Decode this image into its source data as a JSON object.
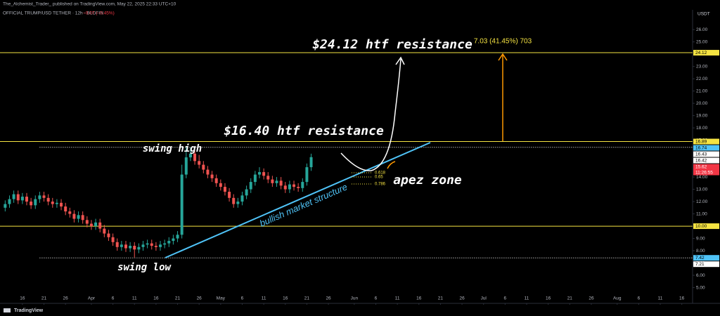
{
  "header": {
    "publisher": "The_Alchemist_Trader_ published on TradingView.com, May 22, 2025 22:33 UTC+10",
    "symbol": "OFFICIAL TRUMP/USD TETHER · 12h · BLOFIN",
    "change": "−0.07 (−0.45%)",
    "brand": "TradingView"
  },
  "chart_data": {
    "type": "candlestick",
    "currency": "USDT",
    "x": [
      -20,
      -19,
      -18,
      -17,
      -16,
      -15,
      -14,
      -13,
      -12,
      -11,
      -10,
      -9,
      -8,
      -7,
      -6,
      -5,
      -4,
      -3,
      -2,
      -1,
      0,
      1,
      2,
      3,
      4,
      5,
      6,
      7,
      8,
      9,
      10,
      11,
      12,
      13,
      14,
      15,
      16,
      17,
      18,
      19,
      20,
      21,
      22,
      23,
      24,
      25,
      26,
      27,
      28,
      29,
      30,
      31,
      32,
      33,
      34,
      35,
      36,
      37,
      38,
      39,
      40,
      41,
      42,
      43,
      44,
      45,
      46,
      47,
      48,
      49,
      50,
      51
    ],
    "open": [
      11.5,
      11.8,
      12.2,
      12.6,
      12.1,
      12.4,
      12.0,
      11.7,
      12.2,
      12.5,
      12.3,
      12.0,
      11.8,
      11.9,
      11.6,
      11.2,
      11.0,
      10.6,
      10.9,
      10.5,
      10.2,
      10.0,
      10.3,
      9.8,
      9.4,
      9.1,
      8.7,
      8.3,
      8.5,
      8.2,
      8.4,
      8.1,
      8.3,
      8.5,
      8.6,
      8.4,
      8.3,
      8.5,
      8.6,
      8.8,
      9.0,
      9.3,
      14.2,
      15.6,
      15.9,
      15.3,
      15.0,
      14.6,
      14.2,
      13.9,
      13.5,
      13.2,
      12.8,
      12.3,
      11.8,
      12.0,
      12.5,
      13.0,
      13.6,
      14.2,
      14.4,
      14.1,
      13.8,
      13.5,
      13.7,
      13.3,
      13.0,
      13.4,
      13.2,
      13.1,
      13.6,
      14.8
    ],
    "high": [
      12.1,
      12.5,
      12.9,
      12.9,
      12.7,
      12.7,
      12.3,
      12.5,
      12.8,
      12.8,
      12.6,
      12.3,
      12.2,
      12.2,
      11.9,
      11.5,
      11.3,
      11.2,
      11.2,
      10.8,
      10.5,
      10.6,
      10.6,
      10.1,
      9.7,
      9.4,
      9.0,
      8.8,
      8.8,
      8.7,
      8.7,
      8.6,
      8.8,
      8.9,
      8.9,
      8.7,
      8.8,
      8.9,
      9.1,
      9.3,
      9.6,
      15.0,
      16.5,
      16.4,
      16.2,
      15.8,
      15.3,
      14.9,
      14.5,
      14.2,
      13.8,
      13.5,
      13.1,
      12.6,
      12.3,
      12.8,
      13.3,
      13.9,
      14.5,
      14.8,
      14.7,
      14.4,
      14.1,
      14.0,
      14.0,
      13.6,
      13.7,
      13.7,
      13.5,
      13.9,
      15.1,
      15.9
    ],
    "low": [
      11.2,
      11.5,
      11.9,
      11.8,
      11.8,
      11.7,
      11.4,
      11.4,
      11.9,
      12.0,
      11.7,
      11.5,
      11.5,
      11.3,
      10.9,
      10.7,
      10.3,
      10.3,
      10.2,
      9.9,
      9.7,
      9.7,
      9.5,
      9.1,
      8.8,
      8.4,
      8.0,
      8.0,
      7.9,
      7.9,
      7.45,
      7.8,
      8.0,
      8.2,
      8.1,
      8.0,
      8.0,
      8.2,
      8.3,
      8.5,
      8.7,
      9.0,
      13.9,
      15.3,
      15.0,
      14.7,
      14.3,
      13.9,
      13.6,
      13.2,
      12.9,
      12.5,
      12.0,
      11.5,
      11.5,
      11.7,
      12.2,
      12.7,
      13.3,
      13.9,
      13.8,
      13.5,
      13.2,
      13.2,
      13.0,
      12.7,
      12.7,
      12.9,
      12.8,
      12.8,
      13.3,
      14.5
    ],
    "close": [
      11.8,
      12.2,
      12.6,
      12.1,
      12.4,
      12.0,
      11.7,
      12.2,
      12.5,
      12.3,
      12.0,
      11.8,
      11.9,
      11.6,
      11.2,
      11.0,
      10.6,
      10.9,
      10.5,
      10.2,
      10.0,
      10.3,
      9.8,
      9.4,
      9.1,
      8.7,
      8.3,
      8.5,
      8.2,
      8.4,
      8.1,
      8.3,
      8.5,
      8.6,
      8.4,
      8.3,
      8.5,
      8.6,
      8.8,
      9.0,
      9.3,
      14.2,
      15.6,
      15.9,
      15.3,
      15.0,
      14.6,
      14.2,
      13.9,
      13.5,
      13.2,
      12.8,
      12.3,
      11.8,
      12.0,
      12.5,
      13.0,
      13.6,
      14.2,
      14.4,
      14.1,
      13.8,
      13.5,
      13.7,
      13.3,
      13.0,
      13.4,
      13.2,
      13.1,
      13.6,
      14.8,
      15.62
    ],
    "up_color": "#26a69a",
    "down_color": "#ef5350",
    "xlim": [
      -21.2,
      139.5
    ],
    "xticks": [
      {
        "value": -16,
        "label": "16"
      },
      {
        "value": -11,
        "label": "21"
      },
      {
        "value": -6,
        "label": "26"
      },
      {
        "value": 0,
        "label": "Apr"
      },
      {
        "value": 5,
        "label": "6"
      },
      {
        "value": 10,
        "label": "11"
      },
      {
        "value": 15,
        "label": "16"
      },
      {
        "value": 20,
        "label": "21"
      },
      {
        "value": 25,
        "label": "26"
      },
      {
        "value": 30,
        "label": "May"
      },
      {
        "value": 35,
        "label": "6"
      },
      {
        "value": 40,
        "label": "11"
      },
      {
        "value": 45,
        "label": "16"
      },
      {
        "value": 50,
        "label": "21"
      },
      {
        "value": 55,
        "label": "26"
      },
      {
        "value": 61,
        "label": "Jun"
      },
      {
        "value": 66,
        "label": "6"
      },
      {
        "value": 71,
        "label": "11"
      },
      {
        "value": 76,
        "label": "16"
      },
      {
        "value": 81,
        "label": "21"
      },
      {
        "value": 86,
        "label": "26"
      },
      {
        "value": 91,
        "label": "Jul"
      },
      {
        "value": 96,
        "label": "6"
      },
      {
        "value": 101,
        "label": "11"
      },
      {
        "value": 106,
        "label": "16"
      },
      {
        "value": 111,
        "label": "21"
      },
      {
        "value": 116,
        "label": "26"
      },
      {
        "value": 122,
        "label": "Aug"
      },
      {
        "value": 127,
        "label": "6"
      },
      {
        "value": 132,
        "label": "11"
      },
      {
        "value": 137,
        "label": "16"
      }
    ],
    "ylim": [
      3.83,
      27.61
    ],
    "yticks": [
      {
        "value": 5,
        "label": "5.00"
      },
      {
        "value": 6,
        "label": "6.00"
      },
      {
        "value": 7,
        "label": "7.00"
      },
      {
        "value": 8,
        "label": "8.00"
      },
      {
        "value": 9,
        "label": "9.00"
      },
      {
        "value": 11,
        "label": "11.00"
      },
      {
        "value": 12,
        "label": "12.00"
      },
      {
        "value": 13,
        "label": "13.00"
      },
      {
        "value": 14,
        "label": "14.00"
      },
      {
        "value": 17,
        "label": "17.00"
      },
      {
        "value": 18,
        "label": "18.00"
      },
      {
        "value": 19,
        "label": "19.00"
      },
      {
        "value": 20,
        "label": "20.00"
      },
      {
        "value": 21,
        "label": "21.00"
      },
      {
        "value": 22,
        "label": "22.00"
      },
      {
        "value": 23,
        "label": "23.00"
      },
      {
        "value": 25,
        "label": "25.00"
      },
      {
        "value": 26,
        "label": "26.00"
      }
    ],
    "levels": [
      {
        "value": 24.12,
        "label": "24.12",
        "color": "#f5e342",
        "line": "solid"
      },
      {
        "value": 16.89,
        "label": "16.89",
        "color": "#f5e342",
        "line": "solid"
      },
      {
        "value": 16.74,
        "label": "16.74",
        "color": "#4fc3f7",
        "line": "none"
      },
      {
        "value": 16.43,
        "label": "16.43",
        "color": "#ffffff",
        "line": "none"
      },
      {
        "value": 16.42,
        "label": "16.42",
        "color": "#ffffff",
        "line": "dotted"
      },
      {
        "value": 15.62,
        "label": "15.62",
        "color": "#f23645",
        "line": "none",
        "sublabel": "11:26:55"
      },
      {
        "value": 10.0,
        "label": "10.00",
        "color": "#f5e342",
        "line": "solid"
      },
      {
        "value": 7.42,
        "label": "7.42",
        "color": "#4fc3f7",
        "line": "dotted"
      },
      {
        "value": 7.21,
        "label": "7.21",
        "color": "#ffffff",
        "line": "none"
      }
    ],
    "annotations": {
      "resistance_high": "$24.12 htf resistance",
      "measure": "7.03 (41.45%) 703",
      "resistance_low": "$16.40 htf resistance",
      "swing_high": "swing high",
      "swing_low": "swing low",
      "zone": "apez zone",
      "trend": "bullish market structure",
      "fib": [
        "0.618",
        "0.65",
        "0.786"
      ]
    }
  }
}
